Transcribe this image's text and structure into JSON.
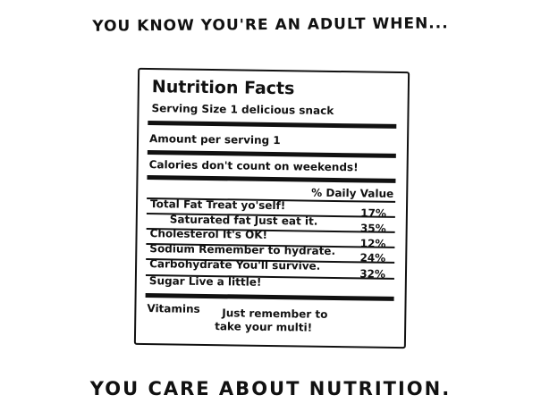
{
  "headline": "YOU KNOW YOU'RE AN ADULT WHEN...",
  "label": {
    "title": "Nutrition Facts",
    "serving_size": "Serving Size 1 delicious snack",
    "amount_per_serving": "Amount per serving 1",
    "calories": "Calories don't count on weekends!",
    "daily_value_header": "% Daily Value",
    "rows": [
      {
        "text": "Total Fat  Treat yo'self!",
        "pct": "17%"
      },
      {
        "text": "Saturated fat  Just eat it.",
        "pct": "35%"
      },
      {
        "text": "Cholesterol  It's OK!",
        "pct": "12%"
      },
      {
        "text": "Sodium  Remember to hydrate.",
        "pct": "24%"
      },
      {
        "text": "Carbohydrate  You'll survive.",
        "pct": "32%"
      },
      {
        "text": "Sugar  Live a little!",
        "pct": ""
      }
    ],
    "vitamins": "Vitamins",
    "vitamins_note_1": "Just remember to",
    "vitamins_note_2": "take your multi!"
  },
  "punchline": "YOU CARE ABOUT NUTRITION."
}
